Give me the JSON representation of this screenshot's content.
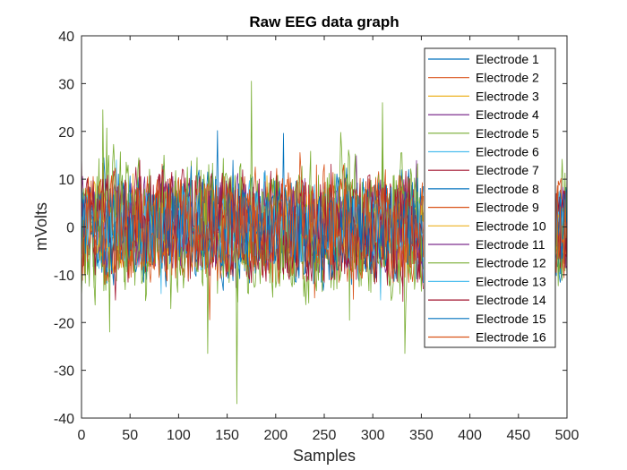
{
  "chart_data": {
    "type": "line",
    "title": "Raw EEG data graph",
    "xlabel": "Samples",
    "ylabel": "mVolts",
    "xlim": [
      0,
      500
    ],
    "ylim": [
      -40,
      40
    ],
    "x_ticks": [
      "0",
      "50",
      "100",
      "150",
      "200",
      "250",
      "300",
      "350",
      "400",
      "450",
      "500"
    ],
    "y_ticks": [
      "40",
      "30",
      "20",
      "10",
      "0",
      "-10",
      "-20",
      "-30",
      "-40"
    ],
    "grid": false,
    "legend_position": "top-right",
    "x_segments": [
      [
        0,
        352
      ],
      [
        488,
        500
      ]
    ],
    "series": [
      {
        "name": "Electrode 1",
        "color": "#0072BD"
      },
      {
        "name": "Electrode 2",
        "color": "#D95319"
      },
      {
        "name": "Electrode 3",
        "color": "#EDB120"
      },
      {
        "name": "Electrode 4",
        "color": "#7E2F8E"
      },
      {
        "name": "Electrode 5",
        "color": "#77AC30"
      },
      {
        "name": "Electrode 6",
        "color": "#4DBEEE"
      },
      {
        "name": "Electrode 7",
        "color": "#A2142F"
      },
      {
        "name": "Electrode 8",
        "color": "#0072BD"
      },
      {
        "name": "Electrode 9",
        "color": "#D95319"
      },
      {
        "name": "Electrode 10",
        "color": "#EDB120"
      },
      {
        "name": "Electrode 11",
        "color": "#7E2F8E"
      },
      {
        "name": "Electrode 12",
        "color": "#77AC30"
      },
      {
        "name": "Electrode 13",
        "color": "#4DBEEE"
      },
      {
        "name": "Electrode 14",
        "color": "#A2142F"
      },
      {
        "name": "Electrode 15",
        "color": "#0072BD"
      },
      {
        "name": "Electrode 16",
        "color": "#D95319"
      }
    ],
    "peaks": [
      {
        "series": "Electrode 12",
        "x": 175,
        "y": 30.5
      },
      {
        "series": "Electrode 12",
        "x": 160,
        "y": -37
      },
      {
        "series": "Electrode 12",
        "x": 310,
        "y": 26
      },
      {
        "series": "Electrode 12",
        "x": 333,
        "y": -26.5
      },
      {
        "series": "Electrode 12",
        "x": 22,
        "y": 24.5
      },
      {
        "series": "Electrode 12",
        "x": 130,
        "y": -26.5
      }
    ]
  }
}
